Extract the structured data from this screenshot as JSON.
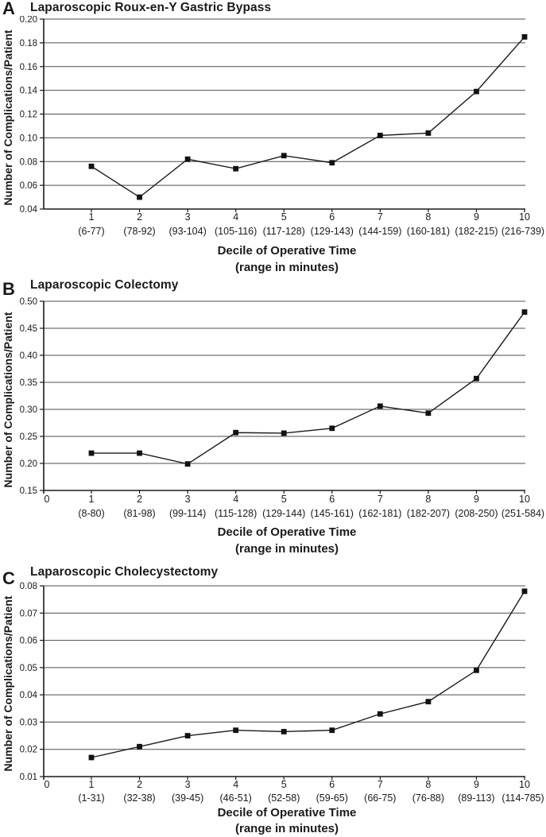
{
  "colors": {
    "line": "#1a1a1a",
    "marker": "#111111",
    "grid": "#4d4d4d",
    "axis": "#1a1a1a",
    "text": "#1a1a1a",
    "background": "#ffffff"
  },
  "chart_data": [
    {
      "type": "line",
      "panel_letter": "A",
      "title": "Laparoscopic Roux-en-Y Gastric Bypass",
      "ylabel": "Number of Complications/Patient",
      "xlabel": "Decile of Operative Time",
      "xlabel_line2": "(range in minutes)",
      "x_origin_label": "",
      "x_decile_labels": [
        "1",
        "2",
        "3",
        "4",
        "5",
        "6",
        "7",
        "8",
        "9",
        "10"
      ],
      "x_range_labels": [
        "(6-77)",
        "(78-92)",
        "(93-104)",
        "(105-116)",
        "(117-128)",
        "(129-143)",
        "(144-159)",
        "(160-181)",
        "(182-215)",
        "(216-739)"
      ],
      "y_ticks": [
        0.04,
        0.06,
        0.08,
        0.1,
        0.12,
        0.14,
        0.16,
        0.18,
        0.2
      ],
      "y_tick_labels": [
        "0.04",
        "0.06",
        "0.08",
        "0.10",
        "0.12",
        "0.14",
        "0.16",
        "0.18",
        "0.20"
      ],
      "ylim": [
        0.04,
        0.2
      ],
      "values": [
        0.076,
        0.05,
        0.082,
        0.074,
        0.085,
        0.079,
        0.102,
        0.104,
        0.139,
        0.185
      ],
      "marker": "square",
      "grid": true,
      "legend": null
    },
    {
      "type": "line",
      "panel_letter": "B",
      "title": "Laparoscopic Colectomy",
      "ylabel": "Number of Complications/Patient",
      "xlabel": "Decile of Operative Time",
      "xlabel_line2": "(range in minutes)",
      "x_origin_label": "0",
      "x_decile_labels": [
        "1",
        "2",
        "3",
        "4",
        "5",
        "6",
        "7",
        "8",
        "9",
        "10"
      ],
      "x_range_labels": [
        "(8-80)",
        "(81-98)",
        "(99-114)",
        "(115-128)",
        "(129-144)",
        "(145-161)",
        "(162-181)",
        "(182-207)",
        "(208-250)",
        "(251-584)"
      ],
      "y_ticks": [
        0.15,
        0.2,
        0.25,
        0.3,
        0.35,
        0.4,
        0.45,
        0.5
      ],
      "y_tick_labels": [
        "0.15",
        "0.20",
        "0.25",
        "0.30",
        "0.35",
        "0.40",
        "0.45",
        "0.50"
      ],
      "ylim": [
        0.15,
        0.5
      ],
      "values": [
        0.219,
        0.219,
        0.199,
        0.257,
        0.256,
        0.265,
        0.306,
        0.293,
        0.357,
        0.48
      ],
      "marker": "square",
      "grid": true,
      "legend": null
    },
    {
      "type": "line",
      "panel_letter": "C",
      "title": "Laparoscopic Cholecystectomy",
      "ylabel": "Number of Complications/Patient",
      "xlabel": "Decile of Operative Time",
      "xlabel_line2": "(range in minutes)",
      "x_origin_label": "0",
      "x_decile_labels": [
        "1",
        "2",
        "3",
        "4",
        "5",
        "6",
        "7",
        "8",
        "9",
        "10"
      ],
      "x_range_labels": [
        "(1-31)",
        "(32-38)",
        "(39-45)",
        "(46-51)",
        "(52-58)",
        "(59-65)",
        "(66-75)",
        "(76-88)",
        "(89-113)",
        "(114-785)"
      ],
      "y_ticks": [
        0.01,
        0.02,
        0.03,
        0.04,
        0.05,
        0.06,
        0.07,
        0.08
      ],
      "y_tick_labels": [
        "0.01",
        "0.02",
        "0.03",
        "0.04",
        "0.05",
        "0.06",
        "0.07",
        "0.08"
      ],
      "ylim": [
        0.01,
        0.08
      ],
      "values": [
        0.017,
        0.021,
        0.025,
        0.027,
        0.0265,
        0.027,
        0.033,
        0.0375,
        0.049,
        0.078
      ],
      "marker": "square",
      "grid": true,
      "legend": null
    }
  ]
}
